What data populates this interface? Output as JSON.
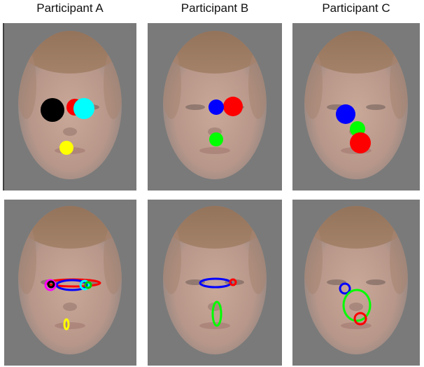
{
  "titles": [
    "Participant A",
    "Participant B",
    "Participant C"
  ]
}
